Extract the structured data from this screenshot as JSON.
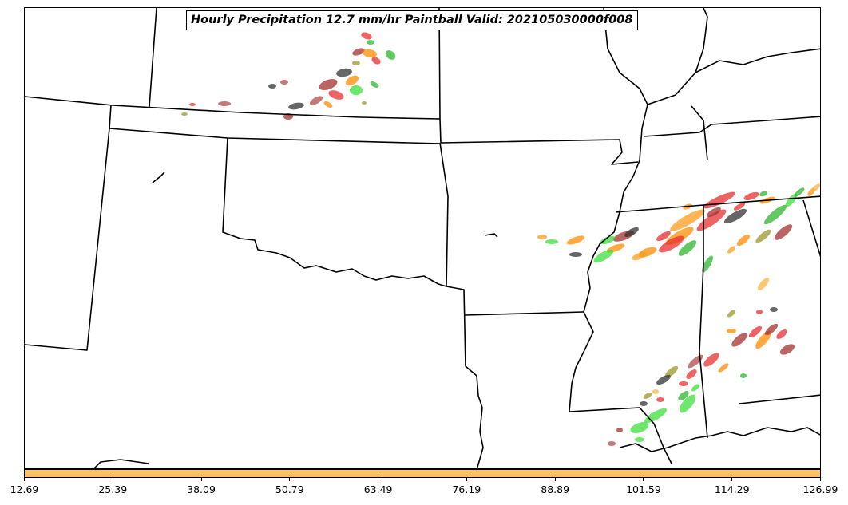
{
  "title": "Hourly Precipitation 12.7 mm/hr Paintball Valid: 202105030000f008",
  "colorbar": {
    "fill_color": "#ffc166",
    "ticks": [
      "12.69",
      "25.39",
      "38.09",
      "50.79",
      "63.49",
      "76.19",
      "88.89",
      "101.59",
      "114.29",
      "126.99"
    ],
    "range": [
      12.69,
      126.99
    ]
  },
  "colors": {
    "ensemble_members": [
      "#2db52d",
      "#3ce03c",
      "#e83030",
      "#ff8c00",
      "#ff9c1f",
      "#a33030",
      "#b24b4b",
      "#9a9a2a",
      "#333333",
      "#ffb347"
    ]
  }
}
